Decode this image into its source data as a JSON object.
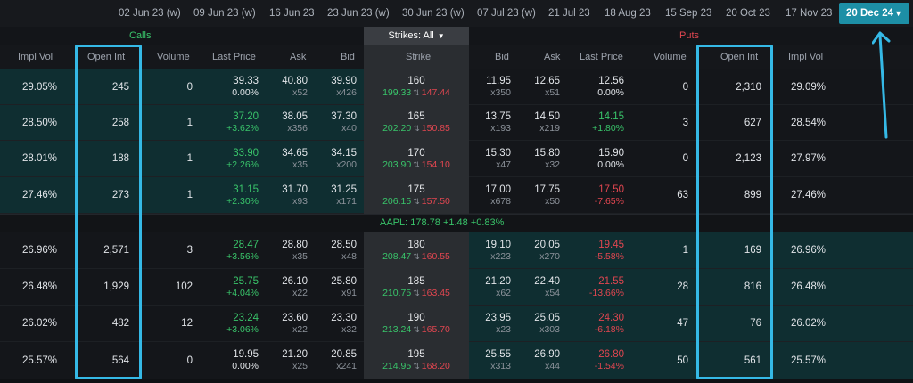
{
  "expiry_bar": {
    "dates": [
      {
        "label": "02 Jun 23 (w)"
      },
      {
        "label": "09 Jun 23 (w)"
      },
      {
        "label": "16 Jun 23"
      },
      {
        "label": "23 Jun 23 (w)"
      },
      {
        "label": "30 Jun 23 (w)"
      },
      {
        "label": "07 Jul 23 (w)"
      },
      {
        "label": "21 Jul 23"
      },
      {
        "label": "18 Aug 23"
      },
      {
        "label": "15 Sep 23"
      },
      {
        "label": "20 Oct 23"
      },
      {
        "label": "17 Nov 23"
      }
    ],
    "selected": "20 Dec 24"
  },
  "band": {
    "calls_label": "Calls",
    "puts_label": "Puts",
    "strikes_button": "Strikes: All"
  },
  "columns": {
    "calls": [
      "Impl Vol",
      "Open Int",
      "Volume",
      "Last Price",
      "Ask",
      "Bid"
    ],
    "strike": "Strike",
    "puts": [
      "Bid",
      "Ask",
      "Last Price",
      "Volume",
      "Open Int",
      "Impl Vol"
    ]
  },
  "underlying": {
    "text": "AAPL: 178.78 +1.48 +0.83%"
  },
  "rows": [
    {
      "call": {
        "iv": "29.05%",
        "oi": "245",
        "volume": "0",
        "last": "39.33",
        "chg": "0.00%",
        "chg_dir": "flat",
        "ask": "40.80",
        "ask_size": "x52",
        "bid": "39.90",
        "bid_size": "x426"
      },
      "strike": {
        "value": "160",
        "be_call": "199.33",
        "be_put": "147.44"
      },
      "put": {
        "bid": "11.95",
        "bid_size": "x350",
        "ask": "12.65",
        "ask_size": "x51",
        "last": "12.56",
        "chg": "0.00%",
        "chg_dir": "flat",
        "volume": "0",
        "oi": "2,310",
        "iv": "29.09%"
      }
    },
    {
      "call": {
        "iv": "28.50%",
        "oi": "258",
        "volume": "1",
        "last": "37.20",
        "chg": "+3.62%",
        "chg_dir": "pos",
        "ask": "38.05",
        "ask_size": "x356",
        "bid": "37.30",
        "bid_size": "x40"
      },
      "strike": {
        "value": "165",
        "be_call": "202.20",
        "be_put": "150.85"
      },
      "put": {
        "bid": "13.75",
        "bid_size": "x193",
        "ask": "14.50",
        "ask_size": "x219",
        "last": "14.15",
        "chg": "+1.80%",
        "chg_dir": "pos",
        "volume": "3",
        "oi": "627",
        "iv": "28.54%"
      }
    },
    {
      "call": {
        "iv": "28.01%",
        "oi": "188",
        "volume": "1",
        "last": "33.90",
        "chg": "+2.26%",
        "chg_dir": "pos",
        "ask": "34.65",
        "ask_size": "x35",
        "bid": "34.15",
        "bid_size": "x200"
      },
      "strike": {
        "value": "170",
        "be_call": "203.90",
        "be_put": "154.10"
      },
      "put": {
        "bid": "15.30",
        "bid_size": "x47",
        "ask": "15.80",
        "ask_size": "x32",
        "last": "15.90",
        "chg": "0.00%",
        "chg_dir": "flat",
        "volume": "0",
        "oi": "2,123",
        "iv": "27.97%"
      }
    },
    {
      "call": {
        "iv": "27.46%",
        "oi": "273",
        "volume": "1",
        "last": "31.15",
        "chg": "+2.30%",
        "chg_dir": "pos",
        "ask": "31.70",
        "ask_size": "x93",
        "bid": "31.25",
        "bid_size": "x171"
      },
      "strike": {
        "value": "175",
        "be_call": "206.15",
        "be_put": "157.50"
      },
      "put": {
        "bid": "17.00",
        "bid_size": "x678",
        "ask": "17.75",
        "ask_size": "x50",
        "last": "17.50",
        "chg": "-7.65%",
        "chg_dir": "neg",
        "volume": "63",
        "oi": "899",
        "iv": "27.46%"
      }
    },
    {
      "call": {
        "iv": "26.96%",
        "oi": "2,571",
        "volume": "3",
        "last": "28.47",
        "chg": "+3.56%",
        "chg_dir": "pos",
        "ask": "28.80",
        "ask_size": "x35",
        "bid": "28.50",
        "bid_size": "x48"
      },
      "strike": {
        "value": "180",
        "be_call": "208.47",
        "be_put": "160.55"
      },
      "put": {
        "bid": "19.10",
        "bid_size": "x223",
        "ask": "20.05",
        "ask_size": "x270",
        "last": "19.45",
        "chg": "-5.58%",
        "chg_dir": "neg",
        "volume": "1",
        "oi": "169",
        "iv": "26.96%"
      }
    },
    {
      "call": {
        "iv": "26.48%",
        "oi": "1,929",
        "volume": "102",
        "last": "25.75",
        "chg": "+4.04%",
        "chg_dir": "pos",
        "ask": "26.10",
        "ask_size": "x22",
        "bid": "25.80",
        "bid_size": "x91"
      },
      "strike": {
        "value": "185",
        "be_call": "210.75",
        "be_put": "163.45"
      },
      "put": {
        "bid": "21.20",
        "bid_size": "x62",
        "ask": "22.40",
        "ask_size": "x54",
        "last": "21.55",
        "chg": "-13.66%",
        "chg_dir": "neg",
        "volume": "28",
        "oi": "816",
        "iv": "26.48%"
      }
    },
    {
      "call": {
        "iv": "26.02%",
        "oi": "482",
        "volume": "12",
        "last": "23.24",
        "chg": "+3.06%",
        "chg_dir": "pos",
        "ask": "23.60",
        "ask_size": "x22",
        "bid": "23.30",
        "bid_size": "x32"
      },
      "strike": {
        "value": "190",
        "be_call": "213.24",
        "be_put": "165.70"
      },
      "put": {
        "bid": "23.95",
        "bid_size": "x23",
        "ask": "25.05",
        "ask_size": "x303",
        "last": "24.30",
        "chg": "-6.18%",
        "chg_dir": "neg",
        "volume": "47",
        "oi": "76",
        "iv": "26.02%"
      }
    },
    {
      "call": {
        "iv": "25.57%",
        "oi": "564",
        "volume": "0",
        "last": "19.95",
        "chg": "0.00%",
        "chg_dir": "flat",
        "ask": "21.20",
        "ask_size": "x25",
        "bid": "20.85",
        "bid_size": "x241"
      },
      "strike": {
        "value": "195",
        "be_call": "214.95",
        "be_put": "168.20"
      },
      "put": {
        "bid": "25.55",
        "bid_size": "x313",
        "ask": "26.90",
        "ask_size": "x44",
        "last": "26.80",
        "chg": "-1.54%",
        "chg_dir": "neg",
        "volume": "50",
        "oi": "561",
        "iv": "25.57%"
      }
    }
  ],
  "colors": {
    "itm_call_bg": "#0f2e31",
    "itm_put_bg": "#0f2e31",
    "otm_bg": "#14161a",
    "positive": "#39c46a",
    "negative": "#e04650",
    "accent": "#1d8fa6",
    "annotation": "#35b9e6"
  }
}
